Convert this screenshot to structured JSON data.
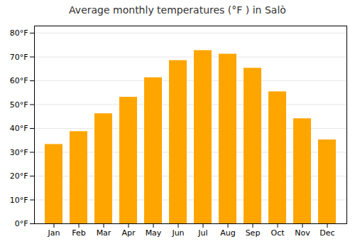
{
  "chart_data": {
    "type": "bar",
    "title": "Average monthly temperatures (°F ) in Salò",
    "categories": [
      "Jan",
      "Feb",
      "Mar",
      "Apr",
      "May",
      "Jun",
      "Jul",
      "Aug",
      "Sep",
      "Oct",
      "Nov",
      "Dec"
    ],
    "values": [
      33.3,
      38.7,
      46.2,
      53.1,
      61.3,
      68.5,
      72.7,
      71.2,
      65.3,
      55.4,
      44.1,
      35.2
    ],
    "color": "#FFA500",
    "ylim": [
      0,
      83
    ],
    "yticks": [
      {
        "value": 0,
        "label": "0°F"
      },
      {
        "value": 10,
        "label": "10°F"
      },
      {
        "value": 20,
        "label": "20°F"
      },
      {
        "value": 30,
        "label": "30°F"
      },
      {
        "value": 40,
        "label": "40°F"
      },
      {
        "value": 50,
        "label": "50°F"
      },
      {
        "value": 60,
        "label": "60°F"
      },
      {
        "value": 70,
        "label": "70°F"
      },
      {
        "value": 80,
        "label": "80°F"
      }
    ],
    "grid": true
  }
}
